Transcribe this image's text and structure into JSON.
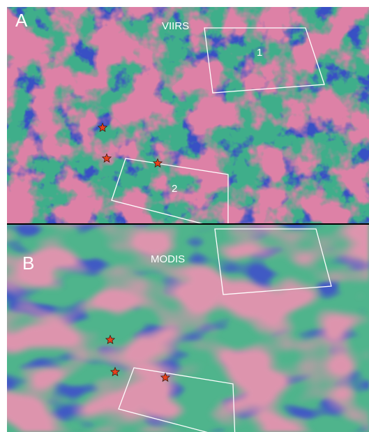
{
  "panel_a": {
    "label": "A",
    "sensor": "VIIRS",
    "regions": [
      "1",
      "2"
    ]
  },
  "panel_b": {
    "label": "B",
    "sensor": "MODIS"
  }
}
